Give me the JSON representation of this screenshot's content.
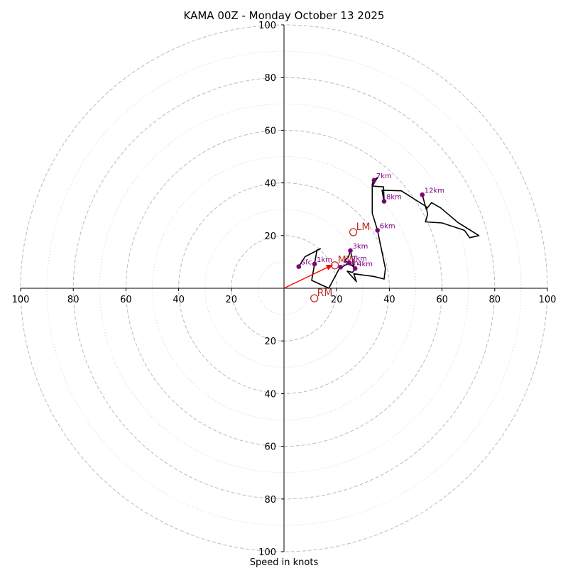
{
  "chart_data": {
    "type": "hodograph",
    "title": "KAMA 00Z - Monday October 13 2025",
    "xlabel": "Speed in knots",
    "units": "knots",
    "range": [
      -100,
      100
    ],
    "rings_major": [
      20,
      40,
      60,
      80,
      100
    ],
    "rings_minor": [
      10,
      30,
      50,
      70,
      90
    ],
    "x_tick_labels": [
      "100",
      "80",
      "60",
      "40",
      "20",
      "20",
      "40",
      "60",
      "80",
      "100"
    ],
    "x_tick_values": [
      -100,
      -80,
      -60,
      -40,
      -20,
      20,
      40,
      60,
      80,
      100
    ],
    "y_tick_labels": [
      "100",
      "80",
      "60",
      "40",
      "20",
      "20",
      "40",
      "60",
      "80",
      "100"
    ],
    "y_tick_values": [
      100,
      80,
      60,
      40,
      20,
      -20,
      -40,
      -60,
      -80,
      -100
    ],
    "colors": {
      "trace": "#000000",
      "height_marker": "#800080",
      "motion": "#c0302a",
      "motion_vector": "#ff0000",
      "grid": "#bbbbbb"
    },
    "trace": [
      {
        "u": 5.6,
        "v": 8.2
      },
      {
        "u": 8,
        "v": 12
      },
      {
        "u": 13.8,
        "v": 15
      },
      {
        "u": 12.5,
        "v": 14.5
      },
      {
        "u": 11.6,
        "v": 9.2
      },
      {
        "u": 10.5,
        "v": 3
      },
      {
        "u": 17,
        "v": 0
      },
      {
        "u": 21,
        "v": 7.5
      },
      {
        "u": 24,
        "v": 9.2
      },
      {
        "u": 26.5,
        "v": 8.5
      },
      {
        "u": 25.2,
        "v": 14.3
      },
      {
        "u": 24.5,
        "v": 12
      },
      {
        "u": 23,
        "v": 10.5
      },
      {
        "u": 24.8,
        "v": 9.6
      },
      {
        "u": 27,
        "v": 7.5
      },
      {
        "u": 26,
        "v": 6
      },
      {
        "u": 24,
        "v": 6.5
      },
      {
        "u": 27.5,
        "v": 2.5
      },
      {
        "u": 26.5,
        "v": 5.5
      },
      {
        "u": 34,
        "v": 4.5
      },
      {
        "u": 38,
        "v": 3.5
      },
      {
        "u": 38.5,
        "v": 7.5
      },
      {
        "u": 35.5,
        "v": 22
      },
      {
        "u": 33.5,
        "v": 28.5
      },
      {
        "u": 33.5,
        "v": 39.5
      },
      {
        "u": 34,
        "v": 41
      },
      {
        "u": 35.5,
        "v": 42
      },
      {
        "u": 33.5,
        "v": 38.8
      },
      {
        "u": 37.8,
        "v": 38.5
      },
      {
        "u": 38,
        "v": 33
      },
      {
        "u": 37.2,
        "v": 37.2
      },
      {
        "u": 44.5,
        "v": 37
      },
      {
        "u": 54,
        "v": 31
      },
      {
        "u": 54.5,
        "v": 28
      },
      {
        "u": 53.7,
        "v": 25.2
      },
      {
        "u": 60,
        "v": 24.8
      },
      {
        "u": 68.5,
        "v": 22
      },
      {
        "u": 70.5,
        "v": 19.2
      },
      {
        "u": 74,
        "v": 20
      },
      {
        "u": 66,
        "v": 25
      },
      {
        "u": 59.5,
        "v": 30.5
      },
      {
        "u": 56,
        "v": 32.5
      },
      {
        "u": 54,
        "v": 30
      },
      {
        "u": 52.5,
        "v": 35.5
      }
    ],
    "height_markers": [
      {
        "label": "Sfc",
        "u": 5.6,
        "v": 8.2
      },
      {
        "label": "1km",
        "u": 11.6,
        "v": 9.2
      },
      {
        "label": "2km",
        "u": 24.8,
        "v": 9.6
      },
      {
        "label": "4km",
        "u": 27,
        "v": 7.5
      },
      {
        "label": "5km",
        "u": 21.5,
        "v": 8
      },
      {
        "label": "3km",
        "u": 25.2,
        "v": 14.3
      },
      {
        "label": "6km",
        "u": 35.5,
        "v": 22
      },
      {
        "label": "7km",
        "u": 34.2,
        "v": 41
      },
      {
        "label": "8km",
        "u": 38,
        "v": 33
      },
      {
        "label": "12km",
        "u": 52.5,
        "v": 35.5
      }
    ],
    "storm_motions": [
      {
        "label": "LM",
        "u": 26.3,
        "v": 21.3
      },
      {
        "label": "MW",
        "u": 19.3,
        "v": 8.7
      },
      {
        "label": "RM",
        "u": 11.5,
        "v": -3.8
      }
    ],
    "motion_vector": {
      "from": [
        0,
        0
      ],
      "to": [
        18.5,
        8.9
      ]
    }
  }
}
